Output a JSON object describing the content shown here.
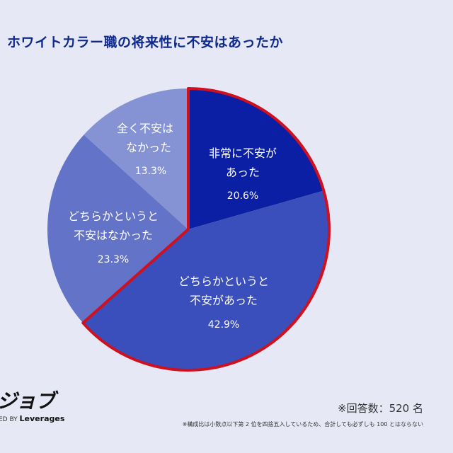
{
  "title": "ホワイトカラー職の将来性に不安はあったか",
  "chart_data": {
    "type": "pie",
    "title": "ホワイトカラー職の将来性に不安はあったか",
    "categories": [
      "非常に不安があった",
      "どちらかというと不安があった",
      "どちらかというと不安はなかった",
      "全く不安はなかった"
    ],
    "values": [
      20.6,
      42.9,
      23.3,
      13.3
    ],
    "unit": "%",
    "colors": [
      "#0a1fa3",
      "#3a4fbb",
      "#6373c7",
      "#8592d3"
    ],
    "highlight": {
      "slices": [
        0,
        1
      ],
      "outline_color": "#d0101e"
    },
    "start_angle": "12 o'clock, clockwise"
  },
  "slices": [
    {
      "line1": "非常に不安が",
      "line2": "あった",
      "pct": "20.6%"
    },
    {
      "line1": "どちらかというと",
      "line2": "不安があった",
      "pct": "42.9%"
    },
    {
      "line1": "どちらかというと",
      "line2": "不安はなかった",
      "pct": "23.3%"
    },
    {
      "line1": "全く不安は",
      "line2": "なかった",
      "pct": "13.3%"
    }
  ],
  "footer": {
    "logo": "ジョブ",
    "powered_by": "ED BY",
    "brand": "Leverages",
    "respondents": "※回答数：520 名",
    "note": "※構成比は小数点以下第 2 位を四捨五入しているため、合計しても必ずしも 100 とはならない"
  }
}
